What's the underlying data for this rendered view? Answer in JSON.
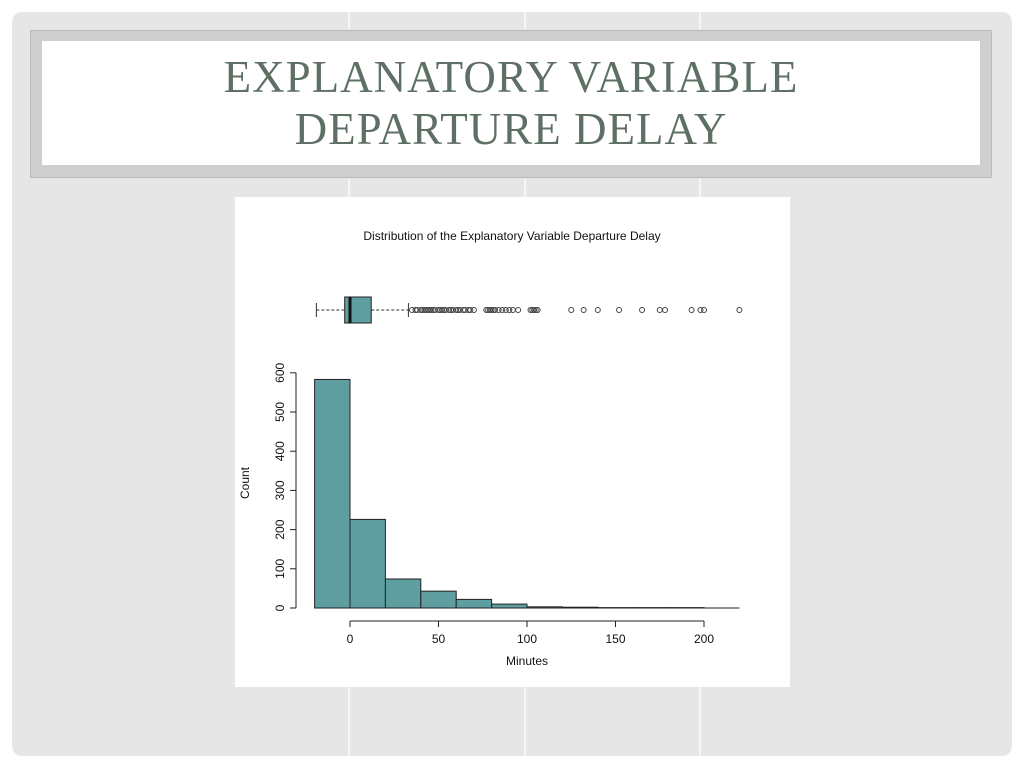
{
  "slide": {
    "title_line1": "EXPLANATORY VARIABLE",
    "title_line2": "DEPARTURE DELAY"
  },
  "colors": {
    "bar_fill": "#5f9ea0",
    "title_text": "#5e6f64",
    "slide_background": "#e6e6e6"
  },
  "chart_data": {
    "type": "bar",
    "title": "Distribution of the Explanatory Variable Departure Delay",
    "xlabel": "Minutes",
    "ylabel": "Count",
    "xlim": [
      -20,
      220
    ],
    "ylim": [
      0,
      600
    ],
    "x_ticks": [
      0,
      50,
      100,
      150,
      200
    ],
    "y_ticks": [
      0,
      100,
      200,
      300,
      400,
      500,
      600
    ],
    "bin_edges": [
      -20,
      0,
      20,
      40,
      60,
      80,
      100,
      120,
      140,
      160,
      180,
      200
    ],
    "values": [
      583,
      226,
      74,
      43,
      22,
      10,
      3,
      2,
      1,
      1,
      1
    ],
    "grid": false,
    "boxplot": {
      "whisker_low": -19,
      "q1": -3,
      "median": 0,
      "q3": 12,
      "whisker_high": 33,
      "outliers": [
        35,
        37,
        38,
        40,
        41,
        42,
        43,
        44,
        45,
        46,
        47,
        48,
        50,
        51,
        52,
        53,
        54,
        56,
        57,
        58,
        60,
        61,
        62,
        64,
        65,
        67,
        68,
        70,
        77,
        78,
        79,
        80,
        81,
        82,
        84,
        86,
        88,
        90,
        92,
        95,
        102,
        103,
        104,
        105,
        106,
        125,
        132,
        140,
        152,
        165,
        175,
        178,
        193,
        198,
        200,
        220
      ]
    }
  }
}
